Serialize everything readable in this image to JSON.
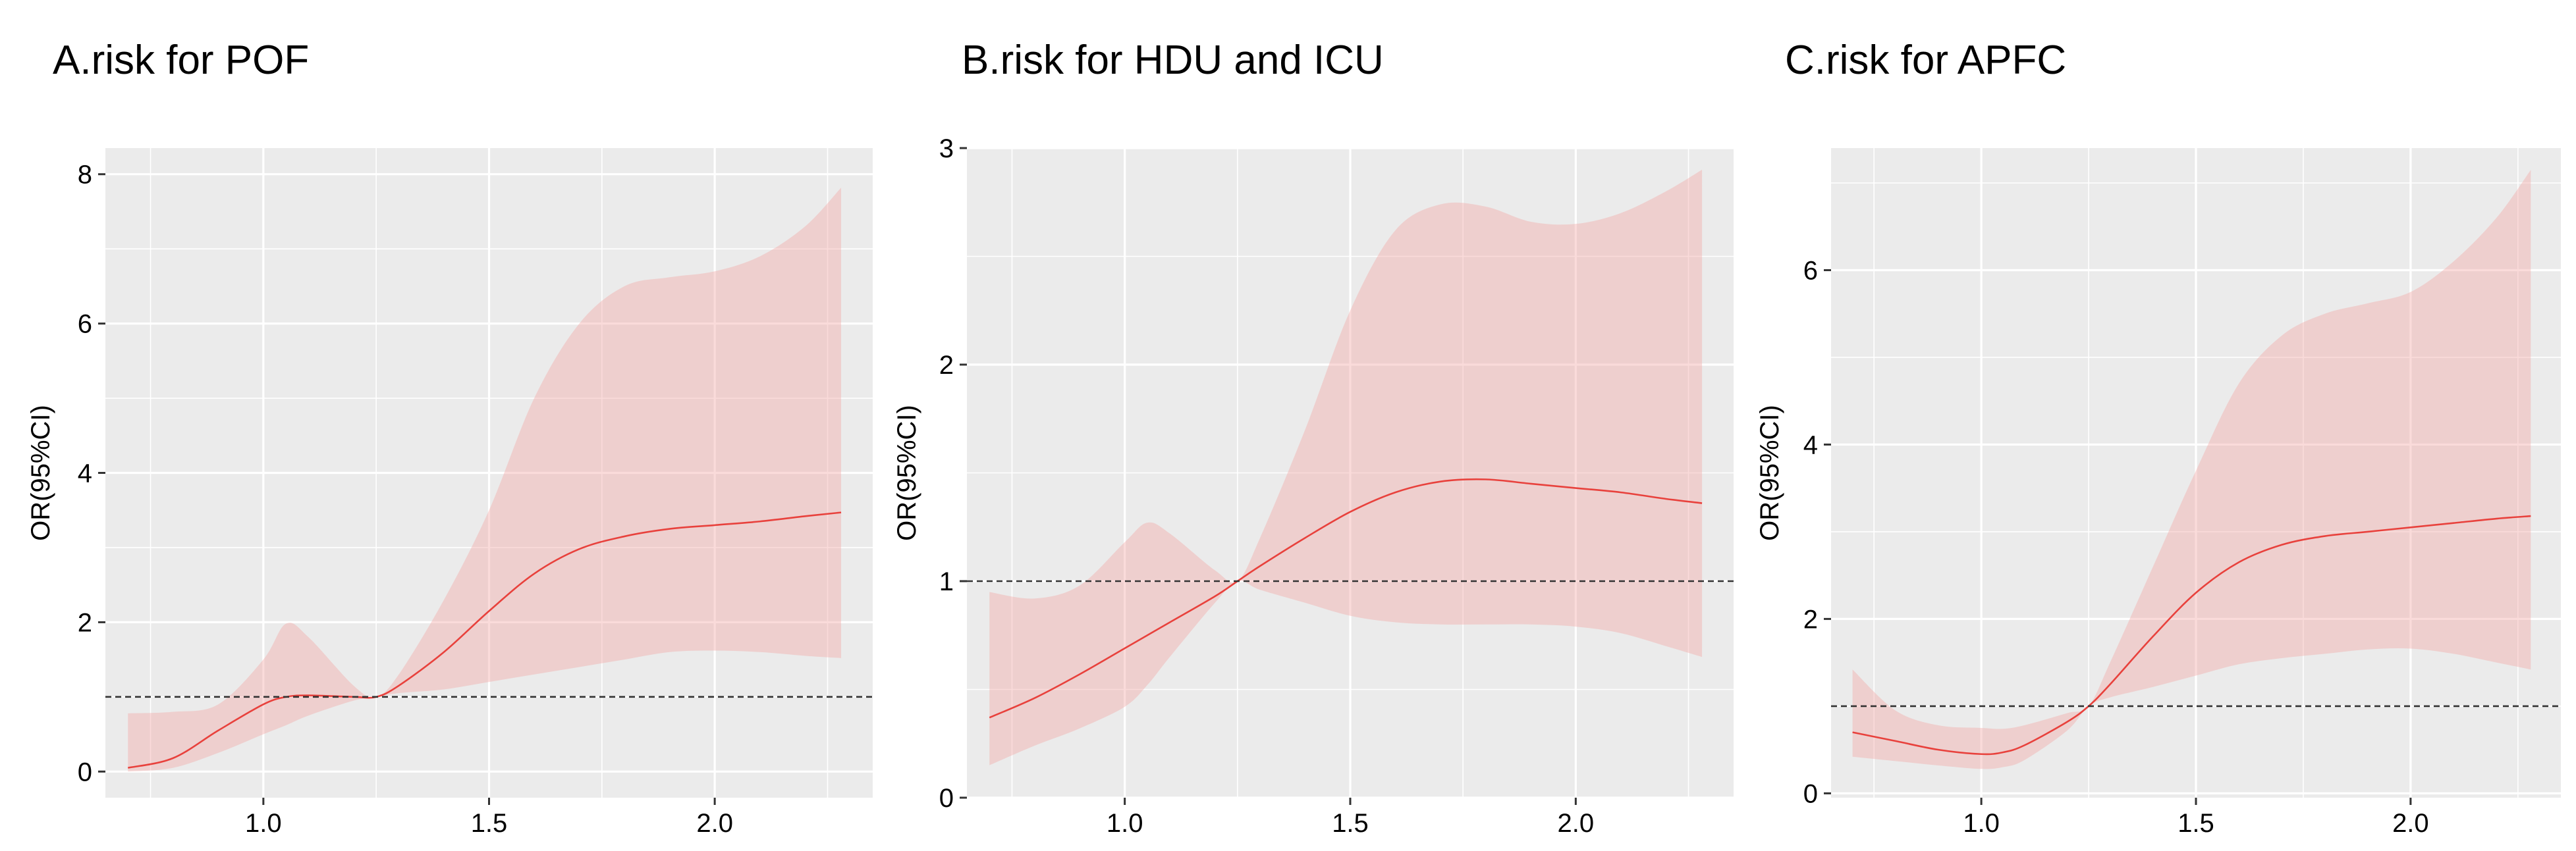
{
  "chart_data": [
    {
      "type": "line",
      "title": "A.risk for POF",
      "xlabel": "",
      "ylabel": "OR(95%CI)",
      "xlim": [
        0.65,
        2.35
      ],
      "ylim": [
        -0.35,
        8.35
      ],
      "xticks": [
        1.0,
        1.5,
        2.0
      ],
      "xtick_labels": [
        "1.0",
        "1.5",
        "2.0"
      ],
      "yticks": [
        0,
        2,
        4,
        6,
        8
      ],
      "ytick_labels": [
        "0",
        "2",
        "4",
        "6",
        "8"
      ],
      "reference_line_y": 1,
      "grid": true,
      "background": "#ebebeb",
      "series": [
        {
          "x": [
            0.7,
            0.8,
            0.9,
            1.0,
            1.05,
            1.1,
            1.2,
            1.25,
            1.3,
            1.4,
            1.5,
            1.6,
            1.7,
            1.8,
            1.9,
            2.0,
            2.1,
            2.2,
            2.28
          ],
          "y": [
            0.05,
            0.18,
            0.55,
            0.9,
            1.0,
            1.02,
            1.0,
            1.0,
            1.15,
            1.6,
            2.15,
            2.65,
            2.98,
            3.15,
            3.25,
            3.3,
            3.35,
            3.42,
            3.47
          ],
          "lower": [
            0.0,
            0.05,
            0.25,
            0.5,
            0.62,
            0.75,
            0.95,
            1.0,
            1.05,
            1.1,
            1.2,
            1.3,
            1.4,
            1.5,
            1.6,
            1.62,
            1.6,
            1.55,
            1.52
          ],
          "upper": [
            0.78,
            0.8,
            0.9,
            1.5,
            1.98,
            1.8,
            1.15,
            1.0,
            1.3,
            2.3,
            3.5,
            5.0,
            6.0,
            6.5,
            6.62,
            6.7,
            6.9,
            7.3,
            7.82
          ]
        }
      ]
    },
    {
      "type": "line",
      "title": "B.risk for HDU and ICU",
      "xlabel": "",
      "ylabel": "OR(95%CI)",
      "xlim": [
        0.65,
        2.35
      ],
      "ylim": [
        0.0,
        3.0
      ],
      "xticks": [
        1.0,
        1.5,
        2.0
      ],
      "xtick_labels": [
        "1.0",
        "1.5",
        "2.0"
      ],
      "yticks": [
        0,
        1,
        2,
        3
      ],
      "ytick_labels": [
        "0",
        "1",
        "2",
        "3"
      ],
      "reference_line_y": 1,
      "grid": true,
      "background": "#ebebeb",
      "series": [
        {
          "x": [
            0.7,
            0.8,
            0.9,
            1.0,
            1.05,
            1.1,
            1.2,
            1.25,
            1.3,
            1.4,
            1.5,
            1.6,
            1.7,
            1.8,
            1.9,
            2.0,
            2.1,
            2.2,
            2.28
          ],
          "y": [
            0.37,
            0.46,
            0.57,
            0.69,
            0.75,
            0.81,
            0.93,
            1.0,
            1.07,
            1.2,
            1.32,
            1.41,
            1.46,
            1.47,
            1.45,
            1.43,
            1.41,
            1.38,
            1.36
          ],
          "lower": [
            0.15,
            0.24,
            0.32,
            0.42,
            0.52,
            0.65,
            0.9,
            1.0,
            0.96,
            0.9,
            0.84,
            0.81,
            0.8,
            0.8,
            0.8,
            0.79,
            0.76,
            0.7,
            0.65
          ],
          "upper": [
            0.95,
            0.92,
            0.98,
            1.18,
            1.27,
            1.22,
            1.05,
            1.0,
            1.2,
            1.7,
            2.25,
            2.62,
            2.74,
            2.73,
            2.66,
            2.65,
            2.7,
            2.8,
            2.9
          ]
        }
      ]
    },
    {
      "type": "line",
      "title": "C.risk for APFC",
      "xlabel": "",
      "ylabel": "OR(95%CI)",
      "xlim": [
        0.65,
        2.35
      ],
      "ylim": [
        -0.05,
        7.4
      ],
      "xticks": [
        1.0,
        1.5,
        2.0
      ],
      "xtick_labels": [
        "1.0",
        "1.5",
        "2.0"
      ],
      "yticks": [
        0,
        2,
        4,
        6
      ],
      "ytick_labels": [
        "0",
        "2",
        "4",
        "6"
      ],
      "reference_line_y": 1,
      "grid": true,
      "background": "#ebebeb",
      "series": [
        {
          "x": [
            0.7,
            0.8,
            0.9,
            1.0,
            1.05,
            1.1,
            1.2,
            1.25,
            1.3,
            1.4,
            1.5,
            1.6,
            1.7,
            1.8,
            1.9,
            2.0,
            2.1,
            2.2,
            2.28
          ],
          "y": [
            0.7,
            0.6,
            0.5,
            0.45,
            0.47,
            0.55,
            0.82,
            1.0,
            1.25,
            1.8,
            2.3,
            2.65,
            2.85,
            2.95,
            3.0,
            3.05,
            3.1,
            3.15,
            3.18
          ],
          "lower": [
            0.42,
            0.37,
            0.32,
            0.28,
            0.3,
            0.38,
            0.72,
            1.0,
            1.1,
            1.22,
            1.35,
            1.48,
            1.55,
            1.6,
            1.65,
            1.66,
            1.6,
            1.5,
            1.42
          ],
          "upper": [
            1.42,
            0.95,
            0.78,
            0.75,
            0.74,
            0.78,
            0.92,
            1.0,
            1.5,
            2.6,
            3.7,
            4.7,
            5.25,
            5.5,
            5.62,
            5.75,
            6.1,
            6.6,
            7.15
          ]
        }
      ]
    }
  ]
}
